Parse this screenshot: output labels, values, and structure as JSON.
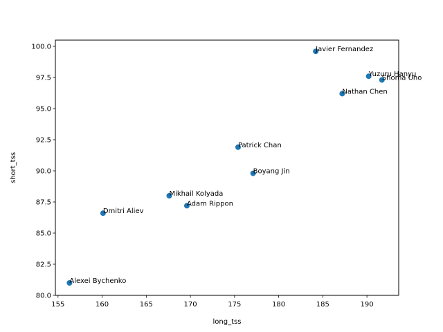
{
  "chart_data": {
    "type": "scatter",
    "title": "",
    "xlabel": "long_tss",
    "ylabel": "short_tss",
    "xlim": [
      154.7,
      193.6
    ],
    "ylim": [
      80.0,
      100.5
    ],
    "x_ticks": [
      155,
      160,
      165,
      170,
      175,
      180,
      185,
      190
    ],
    "x_tick_labels": [
      "155",
      "160",
      "165",
      "170",
      "175",
      "180",
      "185",
      "190"
    ],
    "y_ticks": [
      80.0,
      82.5,
      85.0,
      87.5,
      90.0,
      92.5,
      95.0,
      97.5,
      100.0
    ],
    "y_tick_labels": [
      "80.0",
      "82.5",
      "85.0",
      "87.5",
      "90.0",
      "92.5",
      "95.0",
      "97.5",
      "100.0"
    ],
    "grid": false,
    "legend": "none",
    "marker_color": "#1f77b4",
    "points": [
      {
        "label": "Javier Fernandez",
        "x": 184.2,
        "y": 99.6
      },
      {
        "label": "Yuzuru Hanyu",
        "x": 190.2,
        "y": 97.6
      },
      {
        "label": "Shoma Uno",
        "x": 191.7,
        "y": 97.3
      },
      {
        "label": "Nathan Chen",
        "x": 187.2,
        "y": 96.2
      },
      {
        "label": "Patrick Chan",
        "x": 175.4,
        "y": 91.9
      },
      {
        "label": "Boyang Jin",
        "x": 177.1,
        "y": 89.8
      },
      {
        "label": "Mikhail Kolyada",
        "x": 167.6,
        "y": 88.0
      },
      {
        "label": "Adam Rippon",
        "x": 169.6,
        "y": 87.2
      },
      {
        "label": "Dmitri Aliev",
        "x": 160.1,
        "y": 86.6
      },
      {
        "label": "Alexei Bychenko",
        "x": 156.3,
        "y": 81.0
      }
    ]
  }
}
